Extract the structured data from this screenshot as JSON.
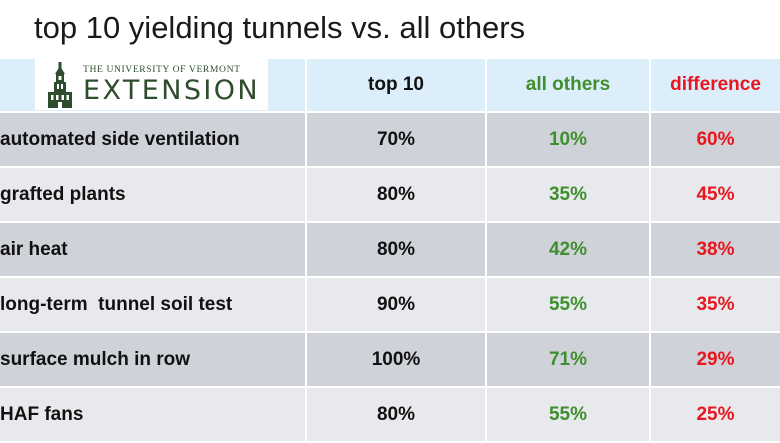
{
  "title": "top 10 yielding tunnels vs. all others",
  "logo": {
    "line1": "THE UNIVERSITY OF VERMONT",
    "line2": "EXTENSION",
    "color": "#2e4d2c"
  },
  "colors": {
    "header_bg": "#dbeefa",
    "row_dark": "#cfd3d9",
    "row_light": "#e7e9ec",
    "green": "#3f8f2e",
    "red": "#e8171f"
  },
  "table": {
    "headers": {
      "top10": "top 10",
      "others": "all others",
      "difference": "difference"
    },
    "rows": [
      {
        "label": "automated side ventilation",
        "top10": "70%",
        "others": "10%",
        "difference": "60%"
      },
      {
        "label": "grafted plants",
        "top10": "80%",
        "others": "35%",
        "difference": "45%"
      },
      {
        "label": "air heat",
        "top10": "80%",
        "others": "42%",
        "difference": "38%"
      },
      {
        "label": "long-term  tunnel soil test",
        "top10": "90%",
        "others": "55%",
        "difference": "35%"
      },
      {
        "label": "surface mulch in row",
        "top10": "100%",
        "others": "71%",
        "difference": "29%"
      },
      {
        "label": "HAF fans",
        "top10": "80%",
        "others": "55%",
        "difference": "25%"
      }
    ]
  }
}
